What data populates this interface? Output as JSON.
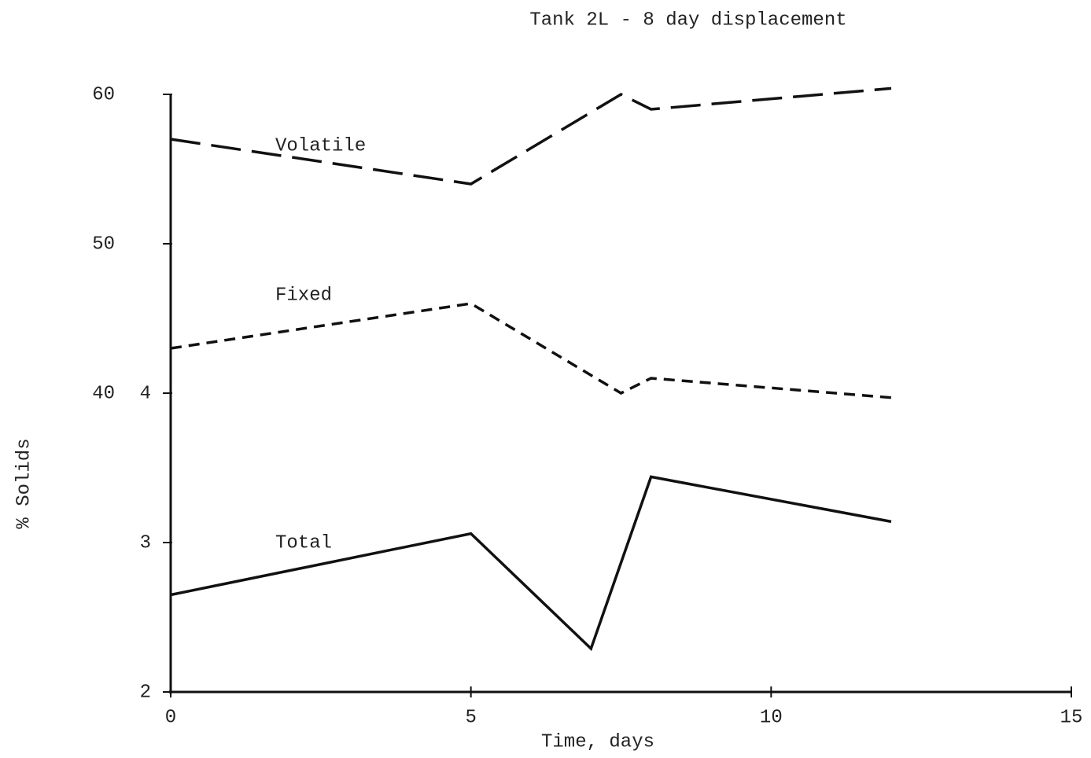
{
  "chart_data": {
    "type": "line",
    "title": "Tank 2L - 8 day displacement",
    "x_label": "Time, days",
    "y_label": "% Solids",
    "xlim": [
      0,
      15
    ],
    "xticks": [
      0,
      5,
      10,
      15
    ],
    "ylim": [
      2,
      6
    ],
    "yticks": [
      2,
      3,
      4
    ],
    "y2lim": [
      20,
      60
    ],
    "y2ticks": [
      40,
      50,
      60
    ],
    "grid": false,
    "series": [
      {
        "name": "Volatile",
        "color": "#111111",
        "line_style": "long-dash",
        "axis": "y2",
        "x": [
          0,
          5,
          7.5,
          8,
          12
        ],
        "values": [
          57,
          54,
          60,
          59,
          60.4
        ]
      },
      {
        "name": "Fixed",
        "color": "#111111",
        "line_style": "short-dash",
        "axis": "y2",
        "x": [
          0,
          5,
          7.5,
          8,
          12
        ],
        "values": [
          43,
          46,
          40,
          41,
          39.7
        ]
      },
      {
        "name": "Total",
        "color": "#111111",
        "line_style": "solid",
        "x": [
          0,
          5,
          7,
          8,
          12
        ],
        "values": [
          2.65,
          3.06,
          2.29,
          3.44,
          3.14
        ]
      }
    ]
  }
}
